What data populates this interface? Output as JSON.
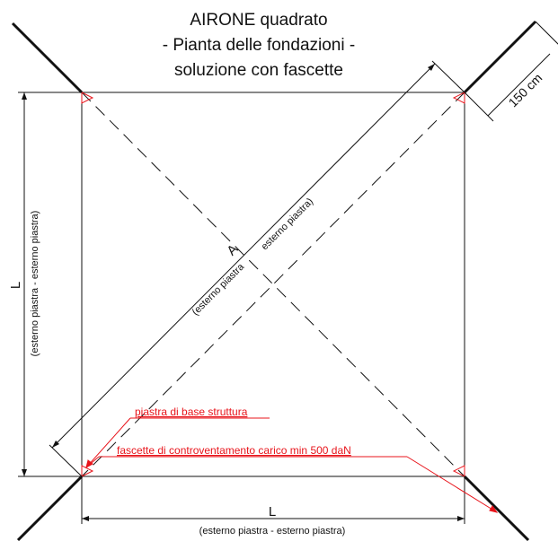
{
  "title": {
    "line1": "AIRONE quadrato",
    "line2": "- Pianta delle fondazioni -",
    "line3": "soluzione con fascette"
  },
  "dimensions": {
    "side_bottom": {
      "symbol": "L",
      "note": "(esterno piastra - esterno piastra)"
    },
    "side_left": {
      "symbol": "L",
      "note": "(esterno piastra - esterno piastra)"
    },
    "diagonal": {
      "symbol": "A",
      "note_a": "(esterno piastra",
      "note_b": "esterno piastra)"
    },
    "guy_length": "150 cm"
  },
  "annotations": {
    "base_plate": "piastra di base struttura",
    "straps": "fascette di controventamento carico min 500 daN"
  },
  "colors": {
    "line": "#111111",
    "annotation": "#e8141b"
  }
}
